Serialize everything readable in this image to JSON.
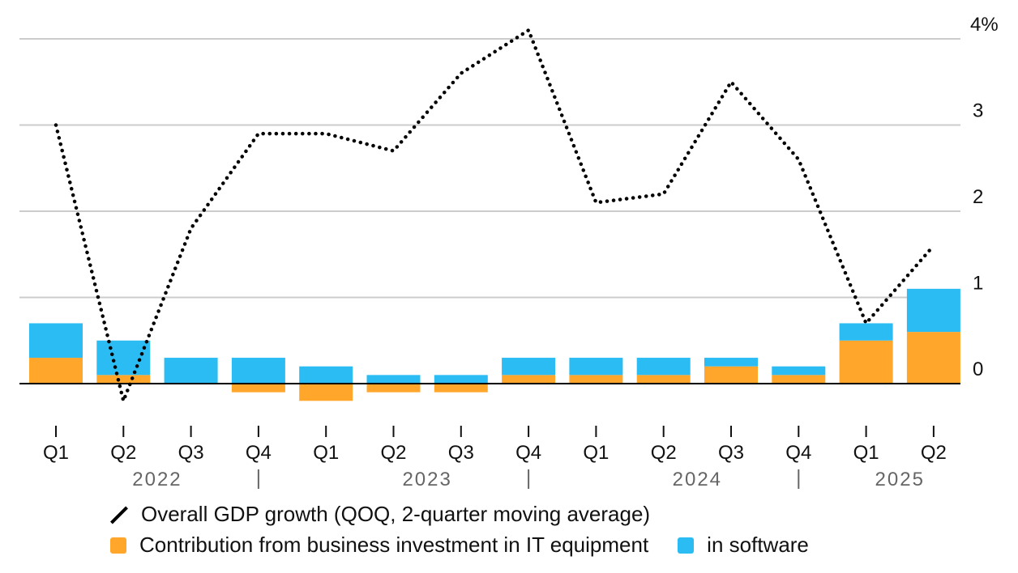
{
  "colors": {
    "it_equipment": "#FFA62B",
    "software": "#2BBCF4",
    "line": "#000000",
    "grid": "#cccccc",
    "axis": "#000000"
  },
  "chart_data": {
    "type": "bar",
    "categories": [
      "Q1",
      "Q2",
      "Q3",
      "Q4",
      "Q1",
      "Q2",
      "Q3",
      "Q4",
      "Q1",
      "Q2",
      "Q3",
      "Q4",
      "Q1",
      "Q2"
    ],
    "years": [
      {
        "label": "2022",
        "span": [
          0,
          3
        ]
      },
      {
        "label": "2023",
        "span": [
          4,
          7
        ]
      },
      {
        "label": "2024",
        "span": [
          8,
          11
        ]
      },
      {
        "label": "2025",
        "span": [
          12,
          13
        ]
      }
    ],
    "series": [
      {
        "name": "Contribution from business investment in IT equipment",
        "kind": "bar-stacked",
        "values": [
          0.3,
          0.1,
          0.0,
          -0.1,
          -0.2,
          -0.1,
          -0.1,
          0.1,
          0.1,
          0.1,
          0.2,
          0.1,
          0.5,
          0.6
        ]
      },
      {
        "name": "in software",
        "kind": "bar-stacked",
        "values": [
          0.4,
          0.4,
          0.3,
          0.3,
          0.2,
          0.1,
          0.1,
          0.2,
          0.2,
          0.2,
          0.1,
          0.1,
          0.2,
          0.5
        ]
      },
      {
        "name": "Overall GDP growth (QOQ, 2-quarter moving average)",
        "kind": "line-dotted",
        "values": [
          3.0,
          -0.2,
          1.8,
          2.9,
          2.9,
          2.7,
          3.6,
          4.1,
          2.1,
          2.2,
          3.5,
          2.6,
          0.7,
          1.6
        ]
      }
    ],
    "y_ticks": [
      "0",
      "1",
      "2",
      "3",
      "4%"
    ],
    "ylim": [
      -0.3,
      4.1
    ],
    "grid": true
  }
}
